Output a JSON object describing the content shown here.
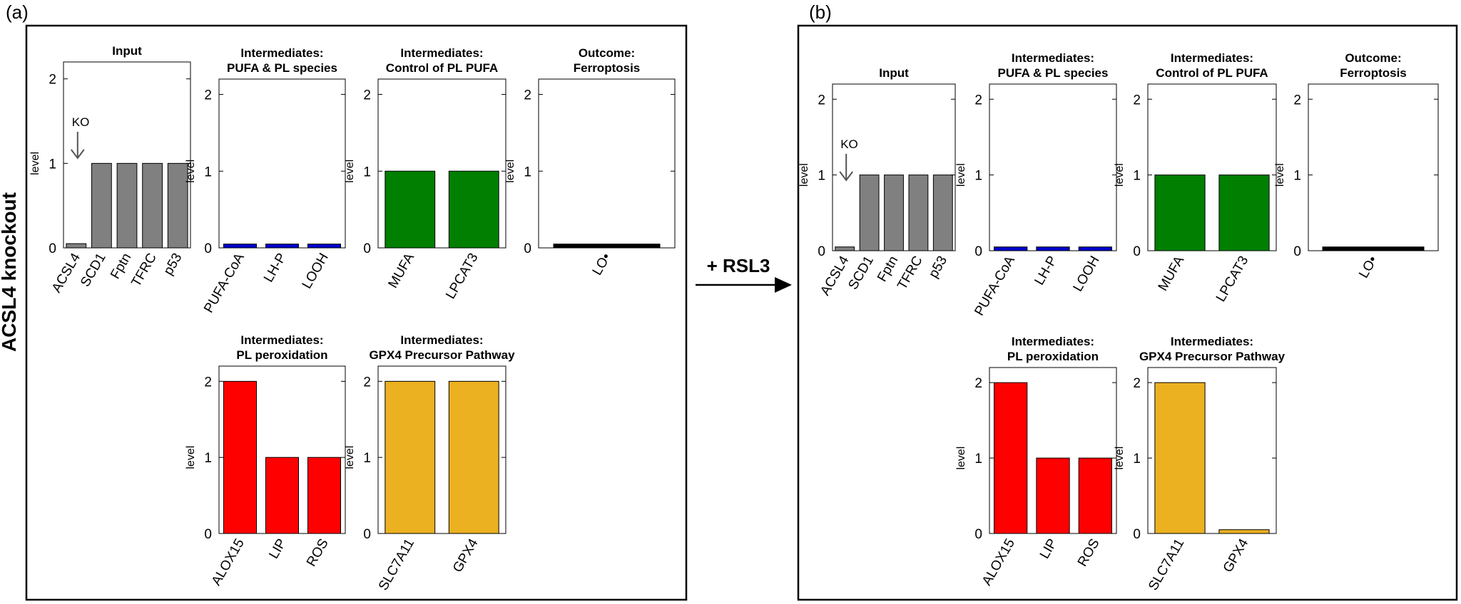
{
  "panels": [
    {
      "label": "(a)",
      "side_label": "ACSL4 knockout"
    },
    {
      "label": "(b)",
      "side_label": ""
    }
  ],
  "transition": {
    "label": "+ RSL3"
  },
  "chart_data": [
    {
      "type": "bar",
      "panel": "a",
      "title": [
        "Input"
      ],
      "ylabel": "level",
      "ylim": [
        0,
        2.2
      ],
      "yticks": [
        0,
        1,
        2
      ],
      "categories": [
        "ACSL4",
        "SCD1",
        "Fptn",
        "TFRC",
        "p53"
      ],
      "values": [
        0.05,
        1,
        1,
        1,
        1
      ],
      "color": "#808080",
      "annotation": {
        "text": "KO",
        "category": "ACSL4"
      }
    },
    {
      "type": "bar",
      "panel": "a",
      "title": [
        "Intermediates:",
        "PUFA & PL species"
      ],
      "ylabel": "level",
      "ylim": [
        0,
        2.2
      ],
      "yticks": [
        0,
        1,
        2
      ],
      "categories": [
        "PUFA-CoA",
        "LH-P",
        "LOOH"
      ],
      "values": [
        0.05,
        0.05,
        0.05
      ],
      "color": "#0000cc"
    },
    {
      "type": "bar",
      "panel": "a",
      "title": [
        "Intermediates:",
        "Control of PL PUFA"
      ],
      "ylabel": "level",
      "ylim": [
        0,
        2.2
      ],
      "yticks": [
        0,
        1,
        2
      ],
      "categories": [
        "MUFA",
        "LPCAT3"
      ],
      "values": [
        1,
        1
      ],
      "color": "#007f00"
    },
    {
      "type": "bar",
      "panel": "a",
      "title": [
        "Outcome:",
        "Ferroptosis"
      ],
      "ylabel": "level",
      "ylim": [
        0,
        2.2
      ],
      "yticks": [
        0,
        1,
        2
      ],
      "categories": [
        "LO•"
      ],
      "values": [
        0.05
      ],
      "color": "#000000"
    },
    {
      "type": "bar",
      "panel": "a",
      "title": [
        "Intermediates:",
        "PL peroxidation"
      ],
      "ylabel": "level",
      "ylim": [
        0,
        2.2
      ],
      "yticks": [
        0,
        1,
        2
      ],
      "categories": [
        "ALOX15",
        "LIP",
        "ROS"
      ],
      "values": [
        2,
        1,
        1
      ],
      "color": "#ff0000"
    },
    {
      "type": "bar",
      "panel": "a",
      "title": [
        "Intermediates:",
        "GPX4 Precursor Pathway"
      ],
      "ylabel": "level",
      "ylim": [
        0,
        2.2
      ],
      "yticks": [
        0,
        1,
        2
      ],
      "categories": [
        "SLC7A11",
        "GPX4"
      ],
      "values": [
        2,
        2
      ],
      "color": "#ecb120"
    },
    {
      "type": "bar",
      "panel": "b",
      "title": [
        "Input"
      ],
      "ylabel": "level",
      "ylim": [
        0,
        2.2
      ],
      "yticks": [
        0,
        1,
        2
      ],
      "categories": [
        "ACSL4",
        "SCD1",
        "Fptn",
        "TFRC",
        "p53"
      ],
      "values": [
        0.05,
        1,
        1,
        1,
        1
      ],
      "color": "#808080",
      "annotation": {
        "text": "KO",
        "category": "ACSL4"
      }
    },
    {
      "type": "bar",
      "panel": "b",
      "title": [
        "Intermediates:",
        "PUFA & PL species"
      ],
      "ylabel": "level",
      "ylim": [
        0,
        2.2
      ],
      "yticks": [
        0,
        1,
        2
      ],
      "categories": [
        "PUFA-CoA",
        "LH-P",
        "LOOH"
      ],
      "values": [
        0.05,
        0.05,
        0.05
      ],
      "color": "#0000cc"
    },
    {
      "type": "bar",
      "panel": "b",
      "title": [
        "Intermediates:",
        "Control of PL PUFA"
      ],
      "ylabel": "level",
      "ylim": [
        0,
        2.2
      ],
      "yticks": [
        0,
        1,
        2
      ],
      "categories": [
        "MUFA",
        "LPCAT3"
      ],
      "values": [
        1,
        1
      ],
      "color": "#007f00"
    },
    {
      "type": "bar",
      "panel": "b",
      "title": [
        "Outcome:",
        "Ferroptosis"
      ],
      "ylabel": "level",
      "ylim": [
        0,
        2.2
      ],
      "yticks": [
        0,
        1,
        2
      ],
      "categories": [
        "LO•"
      ],
      "values": [
        0.05
      ],
      "color": "#000000"
    },
    {
      "type": "bar",
      "panel": "b",
      "title": [
        "Intermediates:",
        "PL peroxidation"
      ],
      "ylabel": "level",
      "ylim": [
        0,
        2.2
      ],
      "yticks": [
        0,
        1,
        2
      ],
      "categories": [
        "ALOX15",
        "LIP",
        "ROS"
      ],
      "values": [
        2,
        1,
        1
      ],
      "color": "#ff0000"
    },
    {
      "type": "bar",
      "panel": "b",
      "title": [
        "Intermediates:",
        "GPX4 Precursor Pathway"
      ],
      "ylabel": "level",
      "ylim": [
        0,
        2.2
      ],
      "yticks": [
        0,
        1,
        2
      ],
      "categories": [
        "SLC7A11",
        "GPX4"
      ],
      "values": [
        2,
        0.05
      ],
      "color": "#ecb120"
    }
  ]
}
